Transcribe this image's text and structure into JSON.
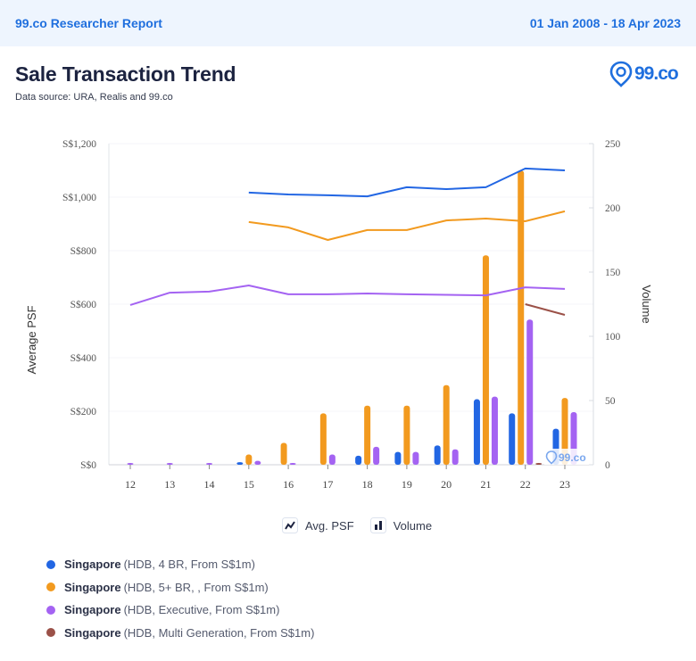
{
  "header": {
    "brand": "99.co Researcher Report",
    "date_range": "01 Jan 2008 - 18 Apr 2023"
  },
  "page": {
    "title": "Sale Transaction Trend",
    "subtitle": "Data source: URA, Realis and 99.co",
    "logo_text": "99.co",
    "watermark_text": "99.co"
  },
  "toggles": {
    "avg_psf": {
      "label": "Avg. PSF",
      "icon": "line-chart-icon"
    },
    "volume": {
      "label": "Volume",
      "icon": "bar-chart-icon"
    }
  },
  "legend": [
    {
      "location": "Singapore",
      "detail": "(HDB, 4 BR, From S$1m)",
      "color": "#2266e3"
    },
    {
      "location": "Singapore",
      "detail": "(HDB, 5+ BR, , From S$1m)",
      "color": "#f29a1f"
    },
    {
      "location": "Singapore",
      "detail": "(HDB, Executive, From S$1m)",
      "color": "#a463f2"
    },
    {
      "location": "Singapore",
      "detail": "(HDB, Multi Generation, From S$1m)",
      "color": "#9b5148"
    }
  ],
  "chart_data": {
    "type": "bar+line",
    "categories": [
      "12",
      "13",
      "14",
      "15",
      "16",
      "17",
      "18",
      "19",
      "20",
      "21",
      "22",
      "23"
    ],
    "ylabel_left": "Average PSF",
    "ylabel_right": "Volume",
    "ylim_left": [
      0,
      1200
    ],
    "ylim_right": [
      0,
      250
    ],
    "left_ticks": [
      "S$0",
      "S$200",
      "S$400",
      "S$600",
      "S$800",
      "S$1,000",
      "S$1,200"
    ],
    "left_tick_values": [
      0,
      200,
      400,
      600,
      800,
      1000,
      1200
    ],
    "right_ticks": [
      "0",
      "50",
      "100",
      "150",
      "200",
      "250"
    ],
    "right_tick_values": [
      0,
      50,
      100,
      150,
      200,
      250
    ],
    "grid": true,
    "lines": [
      {
        "name": "HDB, 4 BR, From S$1m",
        "color": "#2266e3",
        "values": [
          null,
          null,
          null,
          1017,
          1010,
          1007,
          1003,
          1037,
          1030,
          1037,
          1107,
          1100
        ]
      },
      {
        "name": "HDB, 5+ BR, , From S$1m",
        "color": "#f29a1f",
        "values": [
          null,
          null,
          null,
          907,
          887,
          840,
          877,
          877,
          913,
          920,
          910,
          947
        ]
      },
      {
        "name": "HDB, Executive, From S$1m",
        "color": "#a463f2",
        "values": [
          597,
          643,
          647,
          670,
          637,
          637,
          640,
          637,
          635,
          633,
          663,
          657
        ]
      },
      {
        "name": "HDB, Multi Generation, From S$1m",
        "color": "#9b5148",
        "values": [
          null,
          null,
          null,
          null,
          null,
          null,
          null,
          null,
          null,
          null,
          600,
          560
        ]
      }
    ],
    "bars": [
      {
        "name": "HDB, 4 BR, From S$1m",
        "color": "#2266e3",
        "values": [
          0,
          0,
          0,
          2,
          0,
          0,
          7,
          10,
          15,
          51,
          40,
          28
        ]
      },
      {
        "name": "HDB, 5+ BR, , From S$1m",
        "color": "#f29a1f",
        "values": [
          0,
          0,
          0,
          8,
          17,
          40,
          46,
          46,
          62,
          163,
          229,
          52
        ]
      },
      {
        "name": "HDB, Executive, From S$1m",
        "color": "#a463f2",
        "values": [
          1,
          1,
          1,
          3,
          1,
          8,
          14,
          10,
          12,
          53,
          113,
          41
        ]
      },
      {
        "name": "HDB, Multi Generation, From S$1m",
        "color": "#9b5148",
        "values": [
          0,
          0,
          0,
          0,
          0,
          0,
          0,
          0,
          0,
          0,
          1,
          0
        ]
      }
    ]
  }
}
